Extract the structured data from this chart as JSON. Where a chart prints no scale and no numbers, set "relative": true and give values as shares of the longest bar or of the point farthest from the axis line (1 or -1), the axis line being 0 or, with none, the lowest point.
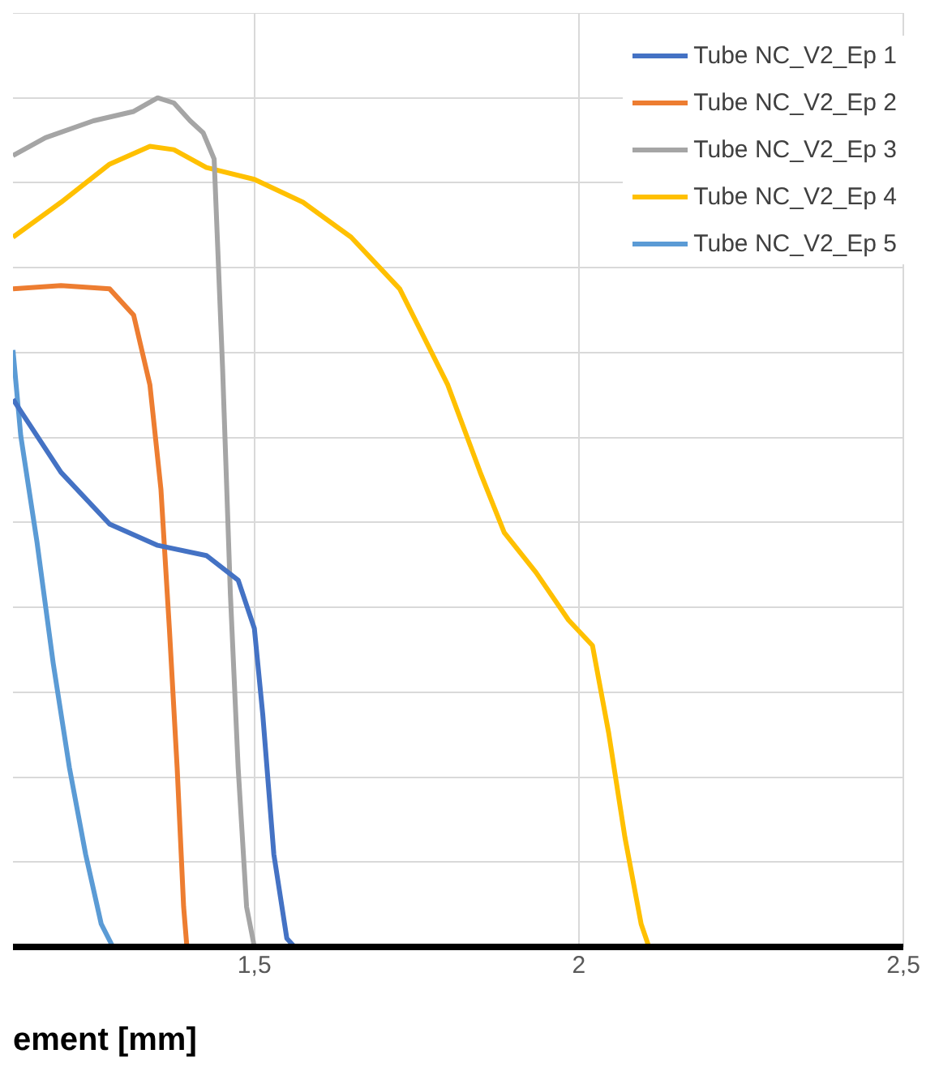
{
  "chart_data": {
    "type": "line",
    "relative": true,
    "xlabel": "ement [mm]",
    "xlim": [
      1.128,
      2.5
    ],
    "xticks": [
      {
        "value": 1.5,
        "label": "1,5"
      },
      {
        "value": 2,
        "label": "2"
      },
      {
        "value": 2.5,
        "label": "2,5"
      }
    ],
    "grid": true,
    "legend": "top right",
    "marker": "none",
    "line_style": "solid",
    "series": [
      {
        "name": "Tube NC_V2_Ep 1",
        "color": "#4472c4",
        "x": [
          1.128,
          1.202,
          1.277,
          1.351,
          1.426,
          1.475,
          1.5,
          1.513,
          1.53,
          1.55,
          1.562,
          1.897
        ],
        "values": [
          0.645,
          0.559,
          0.498,
          0.473,
          0.461,
          0.432,
          0.375,
          0.273,
          0.109,
          0.01,
          0,
          0
        ]
      },
      {
        "name": "Tube NC_V2_Ep 2",
        "color": "#ed7d31",
        "x": [
          1.128,
          1.202,
          1.277,
          1.314,
          1.339,
          1.356,
          1.369,
          1.381,
          1.391,
          1.396,
          1.431
        ],
        "values": [
          0.775,
          0.779,
          0.775,
          0.744,
          0.662,
          0.539,
          0.375,
          0.211,
          0.047,
          0,
          0
        ]
      },
      {
        "name": "Tube NC_V2_Ep 3",
        "color": "#a5a5a5",
        "x": [
          1.128,
          1.178,
          1.252,
          1.314,
          1.351,
          1.376,
          1.401,
          1.421,
          1.438,
          1.451,
          1.463,
          1.475,
          1.488,
          1.5,
          1.649
        ],
        "values": [
          0.932,
          0.953,
          0.973,
          0.984,
          1,
          0.994,
          0.973,
          0.959,
          0.928,
          0.682,
          0.416,
          0.211,
          0.047,
          0,
          0
        ]
      },
      {
        "name": "Tube NC_V2_Ep 4",
        "color": "#ffc000",
        "x": [
          1.128,
          1.202,
          1.277,
          1.339,
          1.376,
          1.426,
          1.5,
          1.575,
          1.649,
          1.724,
          1.798,
          1.848,
          1.885,
          1.934,
          1.984,
          2.021,
          2.046,
          2.071,
          2.096,
          2.108
        ],
        "values": [
          0.836,
          0.877,
          0.922,
          0.943,
          0.939,
          0.918,
          0.904,
          0.877,
          0.836,
          0.775,
          0.662,
          0.559,
          0.488,
          0.441,
          0.385,
          0.355,
          0.252,
          0.129,
          0.027,
          0
        ]
      },
      {
        "name": "Tube NC_V2_Ep 5",
        "color": "#5b9bd5",
        "x": [
          1.128,
          1.14,
          1.165,
          1.19,
          1.215,
          1.24,
          1.264,
          1.282,
          1.302
        ],
        "values": [
          0.703,
          0.602,
          0.477,
          0.334,
          0.211,
          0.109,
          0.027,
          0,
          0
        ]
      }
    ]
  }
}
